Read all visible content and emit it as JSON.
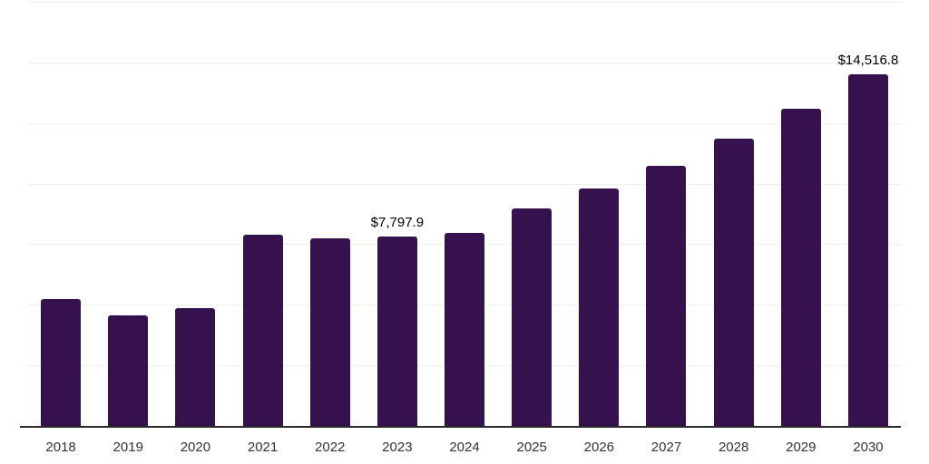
{
  "chart_data": {
    "type": "bar",
    "title": "",
    "xlabel": "",
    "ylabel": "",
    "categories": [
      "2018",
      "2019",
      "2020",
      "2021",
      "2022",
      "2023",
      "2024",
      "2025",
      "2026",
      "2027",
      "2028",
      "2029",
      "2030"
    ],
    "values": [
      5230,
      4560,
      4860,
      7900,
      7740,
      7797.9,
      7980,
      8960,
      9810,
      10720,
      11860,
      13100,
      14516.8
    ],
    "data_labels": [
      "",
      "",
      "",
      "",
      "",
      "$7,797.9",
      "",
      "",
      "",
      "",
      "",
      "",
      "$14,516.8"
    ],
    "ylim": [
      0,
      17500
    ],
    "gridline_interval": 2500,
    "grid": "horizontal-only",
    "legend_position": "none",
    "style": {
      "bar_color": "#35114D",
      "gridline_color": "#f0f0f0",
      "axis_color": "#2b2b2b",
      "tick_label_color": "#333333",
      "data_label_color": "#000000",
      "background_color": "#ffffff"
    }
  }
}
